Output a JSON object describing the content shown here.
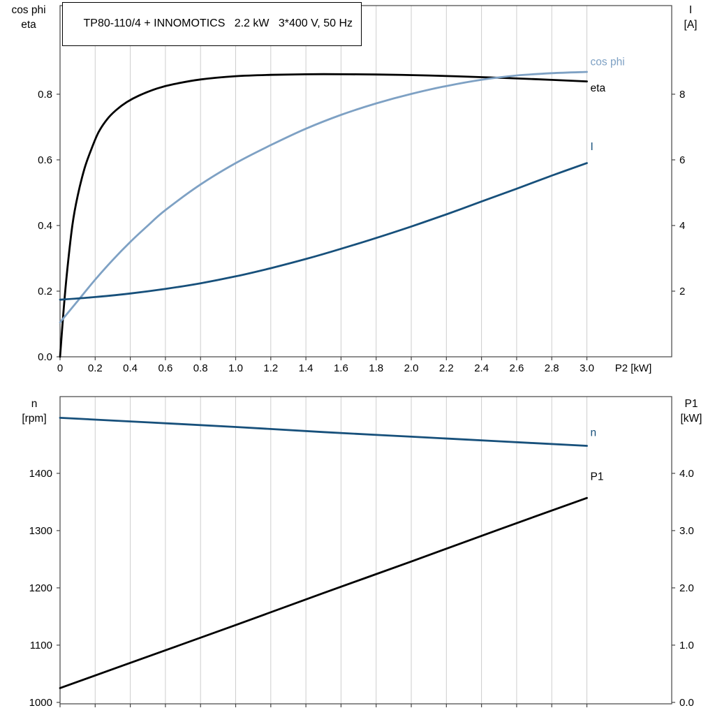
{
  "header": {
    "title": "TP80-110/4 + INNOMOTICS   2.2 kW   3*400 V, 50 Hz"
  },
  "axis_titles": {
    "top_left": [
      "cos phi",
      "eta"
    ],
    "top_right": [
      "I",
      "[A]"
    ],
    "bottom_left": [
      "n",
      "[rpm]"
    ],
    "bottom_right": [
      "P1",
      "[kW]"
    ]
  },
  "colors": {
    "eta": "#000000",
    "cos_phi": "#7EA1C4",
    "current": "#17507B",
    "speed": "#17507B",
    "p1": "#000000",
    "grid": "#cdcdcd",
    "frame": "#444444",
    "text": "#000000"
  },
  "chart_data": [
    {
      "id": "top",
      "type": "line",
      "title": "TP80-110/4 + INNOMOTICS   2.2 kW   3*400 V, 50 Hz",
      "x_axis": {
        "min": 0,
        "max": 3.483,
        "ticks": [
          0,
          0.2,
          0.4,
          0.6,
          0.8,
          1,
          1.2,
          1.4,
          1.6,
          1.8,
          2,
          2.2,
          2.4,
          2.6,
          2.8,
          3
        ],
        "tick_labels": [
          "0",
          "0.2",
          "0.4",
          "0.6",
          "0.8",
          "1.0",
          "1.2",
          "1.4",
          "1.6",
          "1.8",
          "2.0",
          "2.2",
          "2.4",
          "2.6",
          "2.8",
          "3.0"
        ],
        "label": "P2 [kW]",
        "label_x": 3.16
      },
      "y_left": {
        "min": 0,
        "max": 1.07,
        "ticks": [
          0,
          0.2,
          0.4,
          0.6,
          0.8
        ],
        "tick_labels": [
          "0.0",
          "0.2",
          "0.4",
          "0.6",
          "0.8"
        ]
      },
      "y_right": {
        "ticks": [
          2,
          4,
          6,
          8
        ],
        "tick_labels": [
          "2",
          "4",
          "6",
          "8"
        ],
        "scale": 0.1,
        "offset": 0
      },
      "series": [
        {
          "slug": "eta",
          "label": "eta",
          "color_key": "eta",
          "axis": "left",
          "label_xy": [
            3.02,
            0.808
          ],
          "points": [
            [
              0,
              0
            ],
            [
              0.02,
              0.14
            ],
            [
              0.04,
              0.26
            ],
            [
              0.07,
              0.4
            ],
            [
              0.1,
              0.49
            ],
            [
              0.14,
              0.575
            ],
            [
              0.18,
              0.635
            ],
            [
              0.22,
              0.685
            ],
            [
              0.27,
              0.725
            ],
            [
              0.32,
              0.752
            ],
            [
              0.38,
              0.776
            ],
            [
              0.45,
              0.796
            ],
            [
              0.55,
              0.817
            ],
            [
              0.65,
              0.831
            ],
            [
              0.8,
              0.845
            ],
            [
              1.0,
              0.855
            ],
            [
              1.2,
              0.859
            ],
            [
              1.5,
              0.861
            ],
            [
              1.8,
              0.86
            ],
            [
              2.1,
              0.857
            ],
            [
              2.4,
              0.852
            ],
            [
              2.7,
              0.846
            ],
            [
              3.0,
              0.839
            ]
          ]
        },
        {
          "slug": "cos-phi",
          "label": "cos phi",
          "color_key": "cos_phi",
          "axis": "left",
          "label_xy": [
            3.02,
            0.888
          ],
          "points": [
            [
              0,
              0.105
            ],
            [
              0.1,
              0.17
            ],
            [
              0.2,
              0.235
            ],
            [
              0.3,
              0.295
            ],
            [
              0.4,
              0.35
            ],
            [
              0.5,
              0.4
            ],
            [
              0.6,
              0.447
            ],
            [
              0.8,
              0.525
            ],
            [
              1.0,
              0.59
            ],
            [
              1.2,
              0.645
            ],
            [
              1.4,
              0.695
            ],
            [
              1.6,
              0.737
            ],
            [
              1.8,
              0.772
            ],
            [
              2.0,
              0.801
            ],
            [
              2.2,
              0.825
            ],
            [
              2.4,
              0.844
            ],
            [
              2.6,
              0.857
            ],
            [
              2.8,
              0.864
            ],
            [
              3.0,
              0.868
            ]
          ]
        },
        {
          "slug": "current",
          "label": "I",
          "color_key": "current",
          "axis": "right",
          "label_xy": [
            3.02,
            6.3
          ],
          "points": [
            [
              0,
              1.74
            ],
            [
              0.2,
              1.82
            ],
            [
              0.4,
              1.93
            ],
            [
              0.6,
              2.07
            ],
            [
              0.8,
              2.24
            ],
            [
              1.0,
              2.45
            ],
            [
              1.2,
              2.7
            ],
            [
              1.4,
              2.98
            ],
            [
              1.6,
              3.29
            ],
            [
              1.8,
              3.62
            ],
            [
              2.0,
              3.97
            ],
            [
              2.2,
              4.34
            ],
            [
              2.4,
              4.73
            ],
            [
              2.6,
              5.12
            ],
            [
              2.8,
              5.52
            ],
            [
              3.0,
              5.9
            ]
          ]
        }
      ]
    },
    {
      "id": "bottom",
      "type": "line",
      "title": "",
      "x_axis": {
        "min": 0,
        "max": 3.483,
        "ticks": [
          0,
          0.2,
          0.4,
          0.6,
          0.8,
          1,
          1.2,
          1.4,
          1.6,
          1.8,
          2,
          2.2,
          2.4,
          2.6,
          2.8,
          3
        ],
        "tick_labels": [],
        "label": "",
        "label_x": 3.16
      },
      "y_left": {
        "min": 997.5,
        "max": 1534,
        "ticks": [
          1000,
          1100,
          1200,
          1300,
          1400
        ],
        "tick_labels": [
          "1000",
          "1100",
          "1200",
          "1300",
          "1400"
        ]
      },
      "y_right": {
        "ticks": [
          0,
          1,
          2,
          3,
          4
        ],
        "tick_labels": [
          "0.0",
          "1.0",
          "2.0",
          "3.0",
          "4.0"
        ],
        "scale": 100,
        "offset": 1000
      },
      "series": [
        {
          "slug": "speed",
          "label": "n",
          "color_key": "speed",
          "axis": "left",
          "label_xy": [
            3.02,
            1465
          ],
          "points": [
            [
              0,
              1497
            ],
            [
              0.5,
              1489
            ],
            [
              1.0,
              1481
            ],
            [
              1.5,
              1472
            ],
            [
              2.0,
              1464
            ],
            [
              2.5,
              1456
            ],
            [
              3.0,
              1448
            ]
          ]
        },
        {
          "slug": "p1",
          "label": "P1",
          "color_key": "p1",
          "axis": "right",
          "label_xy": [
            3.02,
            3.88
          ],
          "points": [
            [
              0,
              0.25
            ],
            [
              0.5,
              0.8
            ],
            [
              1.0,
              1.35
            ],
            [
              1.5,
              1.91
            ],
            [
              2.0,
              2.46
            ],
            [
              2.5,
              3.02
            ],
            [
              3.0,
              3.57
            ]
          ]
        }
      ]
    }
  ]
}
